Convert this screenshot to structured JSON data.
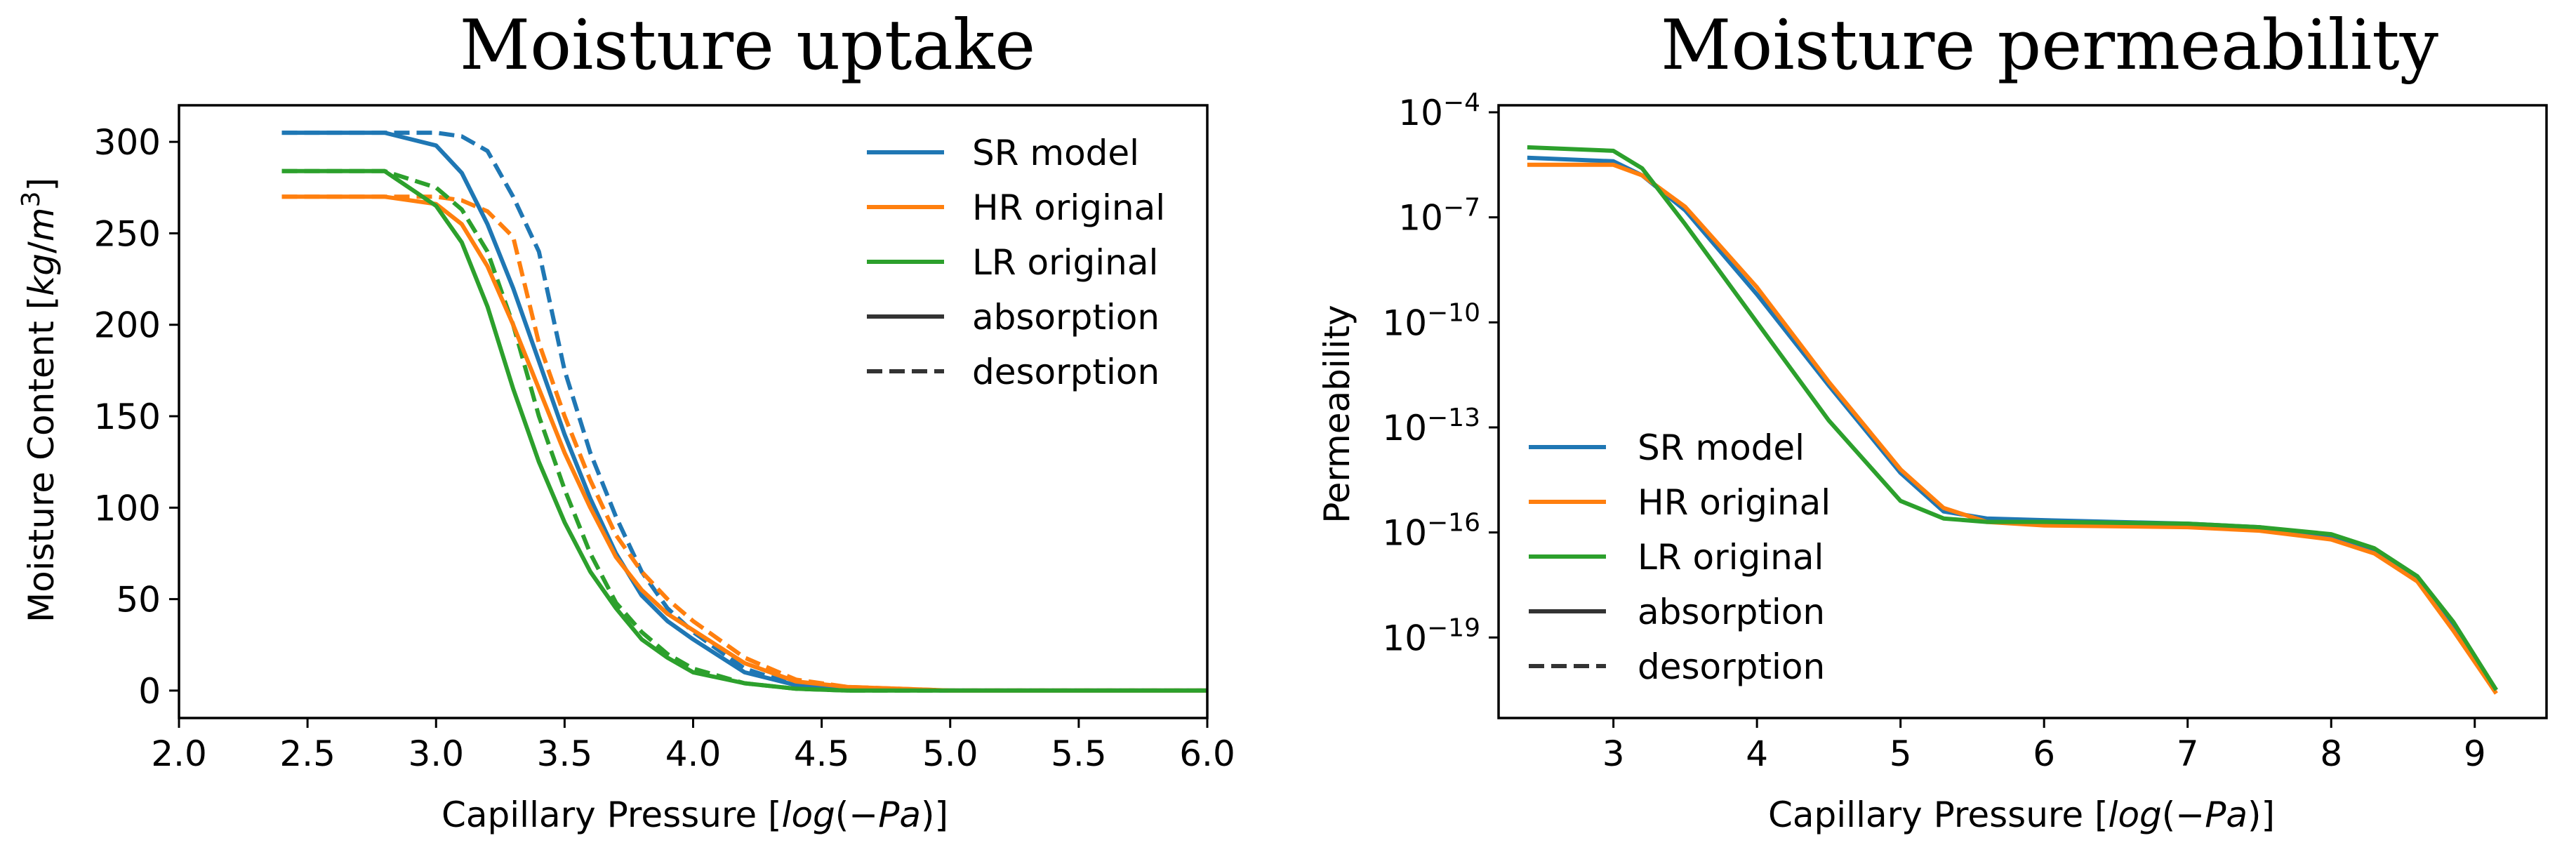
{
  "chart_data": [
    {
      "type": "line",
      "title": "Moisture uptake",
      "xlabel": "Capillary Pressure [log(−Pa)]",
      "ylabel": "Moisture Content [kg/m3]",
      "xlim": [
        2.0,
        6.0
      ],
      "ylim": [
        -15,
        320
      ],
      "yscale": "linear",
      "xticks": [
        2.0,
        2.5,
        3.0,
        3.5,
        4.0,
        4.5,
        5.0,
        5.5,
        6.0
      ],
      "xtick_labels": [
        "2.0",
        "2.5",
        "3.0",
        "3.5",
        "4.0",
        "4.5",
        "5.0",
        "5.5",
        "6.0"
      ],
      "yticks": [
        0,
        50,
        100,
        150,
        200,
        250,
        300
      ],
      "ytick_labels": [
        "0",
        "50",
        "100",
        "150",
        "200",
        "250",
        "300"
      ],
      "legend_position": "top-right",
      "series": [
        {
          "name": "SR model absorption",
          "color": "#1f77b4",
          "style": "solid",
          "x": [
            2.4,
            2.8,
            3.0,
            3.1,
            3.2,
            3.3,
            3.4,
            3.5,
            3.6,
            3.7,
            3.8,
            3.9,
            4.0,
            4.2,
            4.4,
            4.6,
            5.0,
            6.0
          ],
          "y": [
            305,
            305,
            298,
            283,
            255,
            220,
            180,
            140,
            105,
            75,
            52,
            38,
            28,
            10,
            3,
            1,
            0,
            0
          ]
        },
        {
          "name": "SR model desorption",
          "color": "#1f77b4",
          "style": "dashed",
          "x": [
            2.4,
            2.8,
            3.0,
            3.1,
            3.2,
            3.3,
            3.4,
            3.5,
            3.6,
            3.7,
            3.8,
            3.9,
            4.0,
            4.2,
            4.4,
            4.6,
            5.0,
            6.0
          ],
          "y": [
            305,
            305,
            305,
            303,
            295,
            270,
            240,
            175,
            130,
            95,
            65,
            45,
            32,
            12,
            3,
            1,
            0,
            0
          ]
        },
        {
          "name": "HR original absorption",
          "color": "#ff7f0e",
          "style": "solid",
          "x": [
            2.4,
            2.8,
            3.0,
            3.1,
            3.2,
            3.3,
            3.4,
            3.5,
            3.6,
            3.7,
            3.8,
            3.9,
            4.0,
            4.2,
            4.4,
            4.6,
            5.0,
            6.0
          ],
          "y": [
            270,
            270,
            266,
            255,
            232,
            200,
            165,
            130,
            100,
            73,
            55,
            42,
            33,
            15,
            5,
            2,
            0,
            0
          ]
        },
        {
          "name": "HR original desorption",
          "color": "#ff7f0e",
          "style": "dashed",
          "x": [
            2.4,
            2.8,
            3.0,
            3.1,
            3.2,
            3.3,
            3.4,
            3.5,
            3.6,
            3.7,
            3.8,
            3.9,
            4.0,
            4.2,
            4.4,
            4.6,
            5.0,
            6.0
          ],
          "y": [
            270,
            270,
            270,
            268,
            262,
            248,
            190,
            150,
            115,
            85,
            65,
            50,
            38,
            18,
            6,
            2,
            0,
            0
          ]
        },
        {
          "name": "LR original absorption",
          "color": "#2ca02c",
          "style": "solid",
          "x": [
            2.4,
            2.8,
            3.0,
            3.1,
            3.2,
            3.3,
            3.4,
            3.5,
            3.6,
            3.7,
            3.8,
            3.9,
            4.0,
            4.2,
            4.4,
            4.6,
            5.0,
            6.0
          ],
          "y": [
            284,
            284,
            265,
            245,
            210,
            165,
            125,
            92,
            65,
            45,
            28,
            18,
            10,
            4,
            1,
            0,
            0,
            0
          ]
        },
        {
          "name": "LR original desorption",
          "color": "#2ca02c",
          "style": "dashed",
          "x": [
            2.4,
            2.8,
            3.0,
            3.1,
            3.2,
            3.3,
            3.4,
            3.5,
            3.6,
            3.7,
            3.8,
            3.9,
            4.0,
            4.2,
            4.4,
            4.6,
            5.0,
            6.0
          ],
          "y": [
            284,
            284,
            275,
            263,
            240,
            200,
            150,
            110,
            75,
            48,
            32,
            20,
            12,
            4,
            1,
            0,
            0,
            0
          ]
        }
      ]
    },
    {
      "type": "line",
      "title": "Moisture permeability",
      "xlabel": "Capillary Pressure [log(−Pa)]",
      "ylabel": "Permeability",
      "xlim": [
        2.2,
        9.5
      ],
      "ylim_log10": [
        -21.3,
        -3.8
      ],
      "yscale": "log",
      "xticks": [
        3,
        4,
        5,
        6,
        7,
        8,
        9
      ],
      "xtick_labels": [
        "3",
        "4",
        "5",
        "6",
        "7",
        "8",
        "9"
      ],
      "ytick_exponents": [
        -4,
        -7,
        -10,
        -13,
        -16,
        -19
      ],
      "ytick_base": "10",
      "legend_position": "lower-left",
      "series": [
        {
          "name": "SR model",
          "color": "#1f77b4",
          "style": "solid",
          "x": [
            2.4,
            3.0,
            3.2,
            3.5,
            4.0,
            4.5,
            5.0,
            5.3,
            5.6,
            6.0,
            7.0,
            7.5,
            8.0,
            8.3,
            8.6,
            8.85,
            9.05,
            9.15
          ],
          "y_log10": [
            -5.3,
            -5.4,
            -5.8,
            -6.8,
            -9.2,
            -11.8,
            -14.3,
            -15.4,
            -15.6,
            -15.65,
            -15.75,
            -15.85,
            -16.1,
            -16.5,
            -17.3,
            -18.6,
            -19.9,
            -20.5
          ]
        },
        {
          "name": "HR original",
          "color": "#ff7f0e",
          "style": "solid",
          "x": [
            2.4,
            3.0,
            3.2,
            3.5,
            4.0,
            4.5,
            5.0,
            5.3,
            5.6,
            6.0,
            7.0,
            7.5,
            8.0,
            8.3,
            8.6,
            8.85,
            9.05,
            9.15
          ],
          "y_log10": [
            -5.5,
            -5.5,
            -5.8,
            -6.7,
            -9.0,
            -11.7,
            -14.2,
            -15.3,
            -15.7,
            -15.8,
            -15.85,
            -15.95,
            -16.2,
            -16.6,
            -17.4,
            -18.8,
            -20.0,
            -20.6
          ]
        },
        {
          "name": "LR original",
          "color": "#2ca02c",
          "style": "solid",
          "x": [
            2.4,
            3.0,
            3.2,
            3.5,
            4.0,
            4.5,
            5.0,
            5.3,
            5.6,
            6.0,
            7.0,
            7.5,
            8.0,
            8.3,
            8.6,
            8.85,
            9.05,
            9.15
          ],
          "y_log10": [
            -5.0,
            -5.1,
            -5.6,
            -7.2,
            -10.0,
            -12.8,
            -15.1,
            -15.6,
            -15.7,
            -15.7,
            -15.75,
            -15.85,
            -16.05,
            -16.45,
            -17.25,
            -18.55,
            -19.85,
            -20.5
          ]
        }
      ]
    }
  ],
  "legend_uptake": {
    "entries": [
      {
        "label": "SR model",
        "color": "#1f77b4",
        "style": "solid"
      },
      {
        "label": "HR original",
        "color": "#ff7f0e",
        "style": "solid"
      },
      {
        "label": "LR original",
        "color": "#2ca02c",
        "style": "solid"
      },
      {
        "label": "absorption",
        "color": "#333333",
        "style": "solid"
      },
      {
        "label": "desorption",
        "color": "#333333",
        "style": "dashed"
      }
    ]
  },
  "legend_permeability": {
    "entries": [
      {
        "label": "SR model",
        "color": "#1f77b4",
        "style": "solid"
      },
      {
        "label": "HR original",
        "color": "#ff7f0e",
        "style": "solid"
      },
      {
        "label": "LR original",
        "color": "#2ca02c",
        "style": "solid"
      },
      {
        "label": "absorption",
        "color": "#333333",
        "style": "solid"
      },
      {
        "label": "desorption",
        "color": "#333333",
        "style": "dashed"
      }
    ]
  },
  "text": {
    "left_title": "Moisture uptake",
    "right_title": "Moisture permeability",
    "left_xlabel_prefix": "Capillary Pressure [",
    "xlabel_log": "log",
    "xlabel_open": "(−",
    "xlabel_pa": "Pa",
    "xlabel_close": ")]",
    "left_ylabel_prefix": "Moisture Content [",
    "ylabel_kg": "kg",
    "ylabel_slash": "/",
    "ylabel_m": "m",
    "ylabel_exp": "3",
    "ylabel_close": "]",
    "right_ylabel": "Permeability"
  }
}
